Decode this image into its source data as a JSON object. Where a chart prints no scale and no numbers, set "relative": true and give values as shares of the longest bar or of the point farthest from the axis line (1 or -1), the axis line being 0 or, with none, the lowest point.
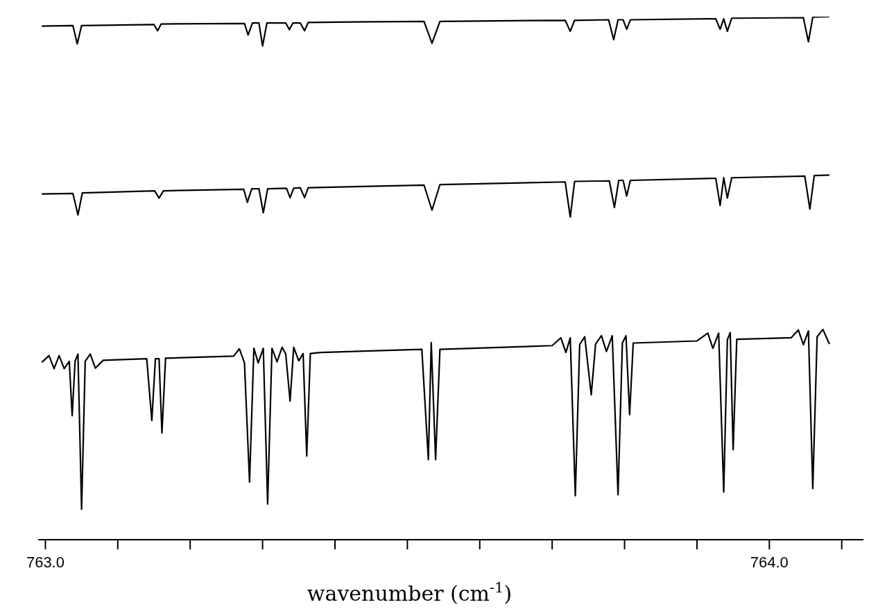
{
  "chart_data": {
    "type": "line",
    "relative": true,
    "xlabel": "wavenumber (cm$^{-1}$)",
    "xlim": [
      762.99,
      764.13
    ],
    "xticks": [
      {
        "value": 763.0,
        "label": "763.0"
      },
      {
        "value": 763.1,
        "label": null
      },
      {
        "value": 763.2,
        "label": null
      },
      {
        "value": 763.3,
        "label": null
      },
      {
        "value": 763.4,
        "label": null
      },
      {
        "value": 763.5,
        "label": null
      },
      {
        "value": 763.6,
        "label": null
      },
      {
        "value": 763.7,
        "label": null
      },
      {
        "value": 763.8,
        "label": null
      },
      {
        "value": 763.9,
        "label": null
      },
      {
        "value": 764.0,
        "label": "764.0"
      },
      {
        "value": 764.1,
        "label": null
      }
    ],
    "series": [
      {
        "color": "#000000",
        "x": [
          762.995,
          763.038,
          763.044,
          763.05,
          763.15,
          763.155,
          763.16,
          763.275,
          763.28,
          763.286,
          763.295,
          763.3,
          763.306,
          763.332,
          763.337,
          763.342,
          763.352,
          763.358,
          763.363,
          763.523,
          763.534,
          763.545,
          763.718,
          763.725,
          763.731,
          763.778,
          763.785,
          763.791,
          763.798,
          763.803,
          763.808,
          763.926,
          763.932,
          763.937,
          763.942,
          763.948,
          764.047,
          764.054,
          764.06,
          764.083
        ],
        "values": [
          0.982,
          0.983,
          0.948,
          0.983,
          0.985,
          0.973,
          0.986,
          0.987,
          0.965,
          0.988,
          0.988,
          0.944,
          0.988,
          0.988,
          0.975,
          0.988,
          0.988,
          0.973,
          0.989,
          0.991,
          0.949,
          0.991,
          0.993,
          0.972,
          0.993,
          0.994,
          0.956,
          0.994,
          0.994,
          0.976,
          0.994,
          0.996,
          0.976,
          0.996,
          0.972,
          0.997,
          0.998,
          0.952,
          0.999,
          1
        ]
      },
      {
        "color": "#000000",
        "x": [
          762.995,
          763.038,
          763.045,
          763.051,
          763.151,
          763.157,
          763.163,
          763.274,
          763.279,
          763.285,
          763.295,
          763.301,
          763.307,
          763.333,
          763.338,
          763.343,
          763.352,
          763.358,
          763.363,
          763.523,
          763.534,
          763.545,
          763.718,
          763.725,
          763.731,
          763.779,
          763.786,
          763.792,
          763.798,
          763.803,
          763.808,
          763.926,
          763.932,
          763.937,
          763.942,
          763.948,
          764.049,
          764.056,
          764.062,
          764.083
        ],
        "values": [
          0.661,
          0.662,
          0.621,
          0.663,
          0.667,
          0.653,
          0.667,
          0.67,
          0.645,
          0.671,
          0.671,
          0.625,
          0.671,
          0.672,
          0.654,
          0.672,
          0.673,
          0.654,
          0.673,
          0.678,
          0.63,
          0.679,
          0.684,
          0.617,
          0.685,
          0.686,
          0.635,
          0.687,
          0.687,
          0.657,
          0.687,
          0.691,
          0.639,
          0.692,
          0.653,
          0.692,
          0.695,
          0.632,
          0.696,
          0.697
        ]
      },
      {
        "color": "#000000",
        "x": [
          762.995,
          763.005,
          763.012,
          763.019,
          763.026,
          763.033,
          763.037,
          763.041,
          763.045,
          763.05,
          763.055,
          763.062,
          763.069,
          763.08,
          763.14,
          763.147,
          763.152,
          763.157,
          763.161,
          763.166,
          763.26,
          763.268,
          763.275,
          763.282,
          763.288,
          763.294,
          763.301,
          763.307,
          763.313,
          763.32,
          763.327,
          763.332,
          763.338,
          763.343,
          763.35,
          763.356,
          763.361,
          763.366,
          763.38,
          763.52,
          763.529,
          763.533,
          763.539,
          763.545,
          763.7,
          763.712,
          763.719,
          763.725,
          763.732,
          763.738,
          763.745,
          763.754,
          763.76,
          763.768,
          763.775,
          763.783,
          763.791,
          763.797,
          763.802,
          763.807,
          763.812,
          763.9,
          763.915,
          763.922,
          763.93,
          763.937,
          763.942,
          763.946,
          763.95,
          763.955,
          764.03,
          764.04,
          764.047,
          764.054,
          764.06,
          764.066,
          764.074,
          764.083
        ],
        "values": [
          0.339,
          0.352,
          0.327,
          0.352,
          0.327,
          0.341,
          0.237,
          0.341,
          0.355,
          0.058,
          0.341,
          0.355,
          0.328,
          0.343,
          0.346,
          0.228,
          0.346,
          0.346,
          0.204,
          0.347,
          0.351,
          0.365,
          0.338,
          0.11,
          0.366,
          0.338,
          0.366,
          0.068,
          0.366,
          0.34,
          0.368,
          0.355,
          0.265,
          0.368,
          0.342,
          0.356,
          0.16,
          0.356,
          0.358,
          0.364,
          0.153,
          0.377,
          0.153,
          0.364,
          0.371,
          0.386,
          0.358,
          0.386,
          0.084,
          0.373,
          0.388,
          0.277,
          0.374,
          0.39,
          0.36,
          0.39,
          0.086,
          0.376,
          0.39,
          0.239,
          0.376,
          0.38,
          0.395,
          0.366,
          0.395,
          0.091,
          0.382,
          0.396,
          0.172,
          0.383,
          0.386,
          0.401,
          0.373,
          0.399,
          0.098,
          0.388,
          0.402,
          0.374
        ]
      }
    ]
  }
}
